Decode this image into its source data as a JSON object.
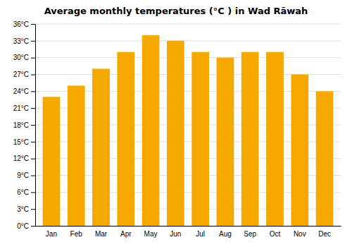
{
  "chart_data": {
    "type": "bar",
    "title": "Average monthly temperatures (°C ) in Wad Rāwah",
    "categories": [
      "Jan",
      "Feb",
      "Mar",
      "Apr",
      "May",
      "Jun",
      "Jul",
      "Aug",
      "Sep",
      "Oct",
      "Nov",
      "Dec"
    ],
    "values": [
      23,
      25,
      28,
      31,
      34,
      33,
      31,
      30,
      31,
      31,
      27,
      24
    ],
    "color": "#F5A800",
    "ylim": [
      0,
      36
    ],
    "yticks": [
      {
        "value": 0,
        "label": "0°C"
      },
      {
        "value": 3,
        "label": "3°C"
      },
      {
        "value": 6,
        "label": "6°C"
      },
      {
        "value": 9,
        "label": "9°C"
      },
      {
        "value": 12,
        "label": "12°C"
      },
      {
        "value": 15,
        "label": "15°C"
      },
      {
        "value": 18,
        "label": "18°C"
      },
      {
        "value": 21,
        "label": "21°C"
      },
      {
        "value": 24,
        "label": "24°C"
      },
      {
        "value": 27,
        "label": "27°C"
      },
      {
        "value": 30,
        "label": "30°C"
      },
      {
        "value": 33,
        "label": "33°C"
      },
      {
        "value": 36,
        "label": "36°C"
      }
    ],
    "grid": true
  }
}
